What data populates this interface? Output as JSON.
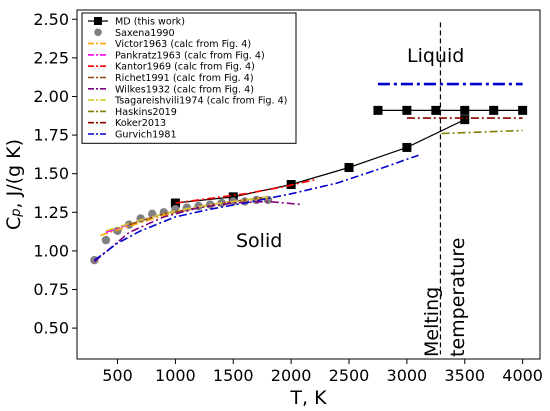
{
  "chart_data": {
    "type": "line",
    "xlabel": "T, K",
    "ylabel_main": "C",
    "ylabel_sub": "p",
    "ylabel_rest": ", J/(g K)",
    "xlim": [
      150,
      4150
    ],
    "ylim": [
      0.3,
      2.56
    ],
    "x_ticks": [
      500,
      1000,
      1500,
      2000,
      2500,
      3000,
      3500,
      4000
    ],
    "y_ticks": [
      0.5,
      0.75,
      1.0,
      1.25,
      1.5,
      1.75,
      2.0,
      2.25,
      2.5
    ],
    "y_tick_labels": [
      "0.50",
      "0.75",
      "1.00",
      "1.25",
      "1.50",
      "1.75",
      "2.00",
      "2.25",
      "2.50"
    ],
    "legend_position": "upper-left",
    "annotations": {
      "liquid": "Liquid",
      "solid": "Solid",
      "melting_1": "Melting",
      "melting_2": "temperature"
    },
    "melting_line_x": 3290,
    "series": [
      {
        "name": "MD (this work)",
        "kind": "line-marker",
        "color": "#000000",
        "marker": "square",
        "x": [
          1000,
          1500,
          2000,
          2500,
          3000,
          3500
        ],
        "y": [
          1.31,
          1.35,
          1.43,
          1.54,
          1.67,
          1.85
        ],
        "errors": [
          0.02,
          0.02,
          0.02,
          0.02,
          0.02,
          0.02
        ]
      },
      {
        "name": "",
        "kind": "line-marker",
        "color": "#000000",
        "marker": "square",
        "x": [
          2750,
          3000,
          3250,
          3500,
          3750,
          4000
        ],
        "y": [
          1.91,
          1.91,
          1.91,
          1.91,
          1.91,
          1.91
        ]
      },
      {
        "name": "Saxena1990",
        "kind": "scatter",
        "color": "#808080",
        "x": [
          300,
          400,
          500,
          600,
          700,
          800,
          900,
          1000,
          1100,
          1200,
          1300,
          1400,
          1500,
          1600,
          1700,
          1800
        ],
        "y": [
          0.94,
          1.07,
          1.13,
          1.17,
          1.21,
          1.24,
          1.25,
          1.27,
          1.28,
          1.29,
          1.3,
          1.31,
          1.32,
          1.32,
          1.33,
          1.33
        ]
      },
      {
        "name": "Victor1963 (calc from Fig. 4)",
        "kind": "dashdot",
        "color": "#ffa500",
        "x": [
          350,
          600,
          900,
          1200,
          1500,
          1800
        ],
        "y": [
          1.1,
          1.16,
          1.23,
          1.28,
          1.32,
          1.34
        ]
      },
      {
        "name": "Pankratz1963 (calc from Fig. 4)",
        "kind": "dashdot",
        "color": "#ff00ff",
        "x": [
          400,
          700,
          1000,
          1300,
          1600,
          1800
        ],
        "y": [
          1.12,
          1.2,
          1.26,
          1.3,
          1.33,
          1.35
        ]
      },
      {
        "name": "Kantor1969 (calc from Fig. 4)",
        "kind": "dashdot",
        "color": "#ff0000",
        "x": [
          1000,
          1300,
          1600,
          1900,
          2200
        ],
        "y": [
          1.31,
          1.34,
          1.37,
          1.41,
          1.46
        ]
      },
      {
        "name": "Richet1991 (calc from Fig. 4)",
        "kind": "dashdot",
        "color": "#8b4513",
        "x": [
          600,
          900,
          1200,
          1500,
          1800
        ],
        "y": [
          1.17,
          1.24,
          1.28,
          1.32,
          1.35
        ]
      },
      {
        "name": "Wilkes1932 (calc from Fig. 4)",
        "kind": "dashdot",
        "color": "#800080",
        "x": [
          300,
          600,
          900,
          1200,
          1500,
          1800,
          2100
        ],
        "y": [
          0.93,
          1.12,
          1.22,
          1.28,
          1.31,
          1.32,
          1.3
        ]
      },
      {
        "name": "Tsagareishvili1974 (calc from Fig. 4)",
        "kind": "dashdot",
        "color": "#cdcd32",
        "x": [
          400,
          700,
          1000,
          1300,
          1600,
          1800
        ],
        "y": [
          1.13,
          1.2,
          1.26,
          1.3,
          1.33,
          1.35
        ]
      },
      {
        "name": "Haskins2019",
        "kind": "dashdot",
        "color": "#808000",
        "x": [
          3300,
          3650,
          4000
        ],
        "y": [
          1.76,
          1.77,
          1.78
        ]
      },
      {
        "name": "Koker2013",
        "kind": "dashdot",
        "color": "#8b0000",
        "x": [
          3000,
          3300,
          3650,
          4000
        ],
        "y": [
          1.86,
          1.86,
          1.86,
          1.86
        ]
      },
      {
        "name": "Gurvich1981",
        "kind": "dashdot",
        "color": "#0000cd",
        "x": [
          300,
          500,
          700,
          1000,
          1300,
          1600,
          2000,
          2400,
          2800,
          3100
        ],
        "y": [
          0.94,
          1.05,
          1.13,
          1.22,
          1.27,
          1.31,
          1.37,
          1.44,
          1.54,
          1.62
        ]
      },
      {
        "name": "",
        "kind": "dashdot-thick",
        "color": "#0000cd",
        "x": [
          2750,
          4000
        ],
        "y": [
          2.08,
          2.08
        ]
      }
    ]
  }
}
